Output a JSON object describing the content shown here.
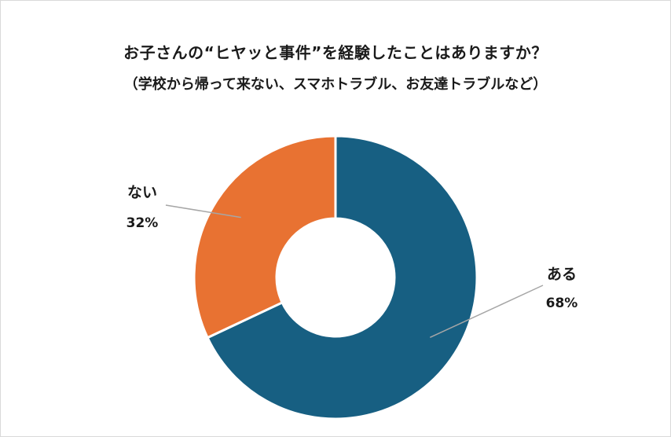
{
  "chart_data": {
    "type": "pie",
    "donut": true,
    "title": "お子さんの“ヒヤッと事件”を経験したことはありますか？",
    "subtitle": "（学校から帰って来ない、スマホトラブル、お友達トラブルなど）",
    "slices": [
      {
        "label": "ある",
        "value": 68,
        "value_label": "68%",
        "color": "#175f82"
      },
      {
        "label": "ない",
        "value": 32,
        "value_label": "32%",
        "color": "#e87232"
      }
    ],
    "start_angle_deg": 0,
    "direction": "clockwise",
    "label_style": "leader-lines"
  }
}
